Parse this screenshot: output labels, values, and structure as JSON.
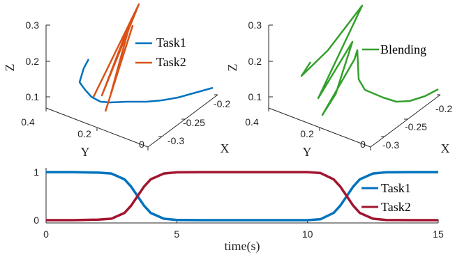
{
  "colors": {
    "task1": "#0072BD",
    "task2": "#D95319",
    "blending": "#33A02C",
    "task2_weight": "#A2142F",
    "axis": "#262626"
  },
  "chart_data": [
    {
      "type": "line",
      "subtype": "3d-trajectory",
      "xlabel": "X",
      "ylabel": "Y",
      "zlabel": "Z",
      "x_ticks": [
        "-0.2",
        "-0.25",
        "-0.3"
      ],
      "y_ticks": [
        "0.4",
        "0.2",
        "0"
      ],
      "z_ticks": [
        "0.3",
        "0.2",
        "0.1"
      ],
      "zlim": [
        0.08,
        0.33
      ],
      "legend_position": "top-right",
      "series": [
        {
          "name": "Task1",
          "color": "#0072BD",
          "points": [
            [
              -0.18,
              0.45,
              0.2
            ],
            [
              -0.22,
              0.35,
              0.15
            ],
            [
              -0.26,
              0.3,
              0.12
            ],
            [
              -0.3,
              0.2,
              0.1
            ],
            [
              -0.2,
              0.0,
              0.12
            ]
          ]
        },
        {
          "name": "Task2",
          "color": "#D95319",
          "points": [
            [
              -0.22,
              0.3,
              0.1
            ],
            [
              -0.2,
              0.35,
              0.33
            ],
            [
              -0.24,
              0.28,
              0.09
            ],
            [
              -0.21,
              0.32,
              0.28
            ],
            [
              -0.23,
              0.29,
              0.08
            ]
          ]
        }
      ]
    },
    {
      "type": "line",
      "subtype": "3d-trajectory",
      "xlabel": "X",
      "ylabel": "Y",
      "zlabel": "Z",
      "x_ticks": [
        "-0.2",
        "-0.25",
        "-0.3"
      ],
      "y_ticks": [
        "0.4",
        "0.2",
        "0"
      ],
      "z_ticks": [
        "0.3",
        "0.2",
        "0.1"
      ],
      "zlim": [
        0.08,
        0.33
      ],
      "legend_position": "top-right",
      "series": [
        {
          "name": "Blending",
          "color": "#33A02C",
          "points": [
            [
              -0.2,
              0.4,
              0.15
            ],
            [
              -0.22,
              0.35,
              0.33
            ],
            [
              -0.24,
              0.3,
              0.1
            ],
            [
              -0.22,
              0.25,
              0.28
            ],
            [
              -0.2,
              0.0,
              0.12
            ]
          ]
        }
      ]
    },
    {
      "type": "line",
      "xlabel": "time(s)",
      "ylabel": "",
      "xlim": [
        0,
        15
      ],
      "ylim": [
        0,
        1
      ],
      "x_ticks": [
        "0",
        "5",
        "10",
        "15"
      ],
      "y_ticks": [
        "0",
        "1"
      ],
      "legend_position": "right",
      "x": [
        0,
        1,
        2,
        2.5,
        3,
        3.25,
        3.5,
        3.75,
        4,
        4.5,
        5,
        6,
        8,
        10,
        10.5,
        11,
        11.25,
        11.5,
        11.75,
        12,
        12.5,
        13,
        14,
        15
      ],
      "series": [
        {
          "name": "Task1",
          "color": "#0072BD",
          "values": [
            1,
            1,
            0.99,
            0.97,
            0.85,
            0.7,
            0.5,
            0.3,
            0.15,
            0.03,
            0.005,
            0,
            0,
            0,
            0.02,
            0.15,
            0.3,
            0.5,
            0.7,
            0.85,
            0.97,
            0.995,
            1,
            1
          ]
        },
        {
          "name": "Task2",
          "color": "#A2142F",
          "values": [
            0,
            0,
            0.01,
            0.03,
            0.15,
            0.3,
            0.5,
            0.7,
            0.85,
            0.97,
            0.995,
            1,
            1,
            1,
            0.98,
            0.85,
            0.7,
            0.5,
            0.3,
            0.15,
            0.03,
            0.005,
            0,
            0
          ]
        }
      ]
    }
  ]
}
